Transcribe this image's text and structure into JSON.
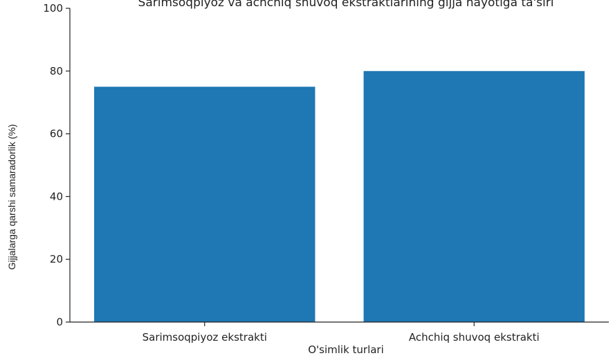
{
  "chart_data": {
    "type": "bar",
    "title": "Sarimsoqpiyoz va achchiq shuvoq ekstraktlarining gijja hayotiga ta'siri",
    "categories": [
      "Sarimsoqpiyoz ekstrakti",
      "Achchiq shuvoq ekstrakti"
    ],
    "values": [
      75,
      80
    ],
    "xlabel": "O'simlik turlari",
    "ylabel": "Gijjalarga qarshi samaradorlik (%)",
    "ylim": [
      0,
      100
    ],
    "yticks": [
      0,
      20,
      40,
      60,
      80,
      100
    ],
    "grid": false,
    "bar_color": "#1f77b4"
  }
}
